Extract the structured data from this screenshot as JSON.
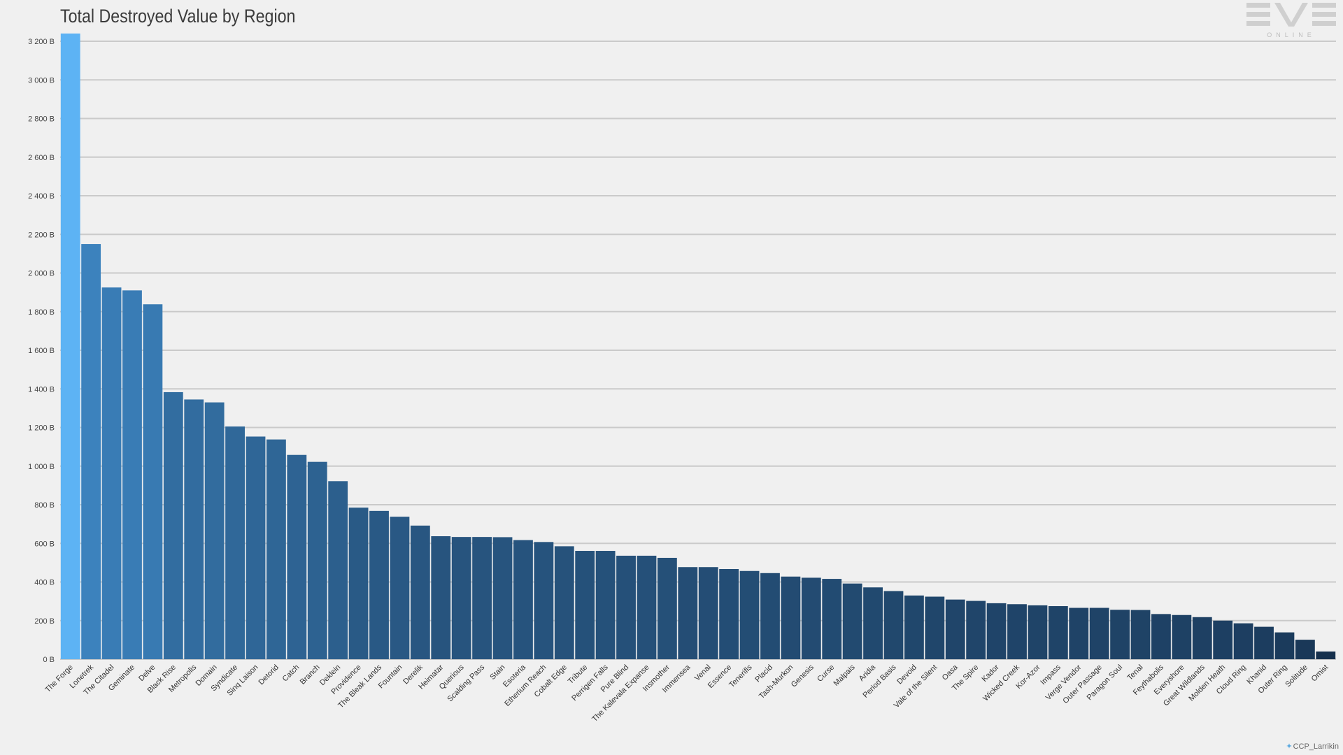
{
  "logo": {
    "text": "EVE",
    "subtext": "ONLINE"
  },
  "credit": {
    "icon": "twitter-bird-icon",
    "handle": "CCP_Larrikin"
  },
  "chart_data": {
    "type": "bar",
    "title": "Total Destroyed Value by Region",
    "xlabel": "",
    "ylabel": "",
    "ylim": [
      0,
      3200
    ],
    "yticks": [
      0,
      200,
      400,
      600,
      800,
      1000,
      1200,
      1400,
      1600,
      1800,
      2000,
      2200,
      2400,
      2600,
      2800,
      3000,
      3200
    ],
    "ytick_labels": [
      "0 B",
      "200 B",
      "400 B",
      "600 B",
      "800 B",
      "1 000 B",
      "1 200 B",
      "1 400 B",
      "1 600 B",
      "1 800 B",
      "2 000 B",
      "2 200 B",
      "2 400 B",
      "2 600 B",
      "2 800 B",
      "3 000 B",
      "3 200 B"
    ],
    "grid": true,
    "colors": {
      "highlight": "#5db3f4",
      "high": "#3c82bd",
      "low": "#16304d"
    },
    "categories": [
      "The Forge",
      "Lonetrek",
      "The Citadel",
      "Geminate",
      "Delve",
      "Black Rise",
      "Metropolis",
      "Domain",
      "Syndicate",
      "Sinq Laison",
      "Detorid",
      "Catch",
      "Branch",
      "Deklein",
      "Providence",
      "The Bleak Lands",
      "Fountain",
      "Derelik",
      "Heimatar",
      "Querious",
      "Scalding Pass",
      "Stain",
      "Esoteria",
      "Etherium Reach",
      "Cobalt Edge",
      "Tribute",
      "Perrigen Falls",
      "Pure Blind",
      "The Kalevala Expanse",
      "Insmother",
      "Immensea",
      "Venal",
      "Essence",
      "Tenerifis",
      "Placid",
      "Tash-Murkon",
      "Genesis",
      "Curse",
      "Malpais",
      "Aridia",
      "Period Basis",
      "Devoid",
      "Vale of the Silent",
      "Oasa",
      "The Spire",
      "Kador",
      "Wicked Creek",
      "Kor-Azor",
      "Impass",
      "Verge Vendor",
      "Outer Passage",
      "Paragon Soul",
      "Tenal",
      "Feythabolis",
      "Everyshore",
      "Great Wildlands",
      "Molden Heath",
      "Cloud Ring",
      "Khanid",
      "Outer Ring",
      "Solitude",
      "Omist"
    ],
    "values": [
      3240,
      2150,
      1925,
      1910,
      1838,
      1383,
      1345,
      1330,
      1205,
      1153,
      1138,
      1058,
      1022,
      922,
      785,
      768,
      738,
      692,
      637,
      633,
      633,
      632,
      617,
      607,
      585,
      561,
      561,
      536,
      536,
      525,
      477,
      477,
      467,
      457,
      446,
      428,
      422,
      416,
      392,
      372,
      353,
      330,
      324,
      309,
      302,
      290,
      285,
      279,
      275,
      266,
      266,
      256,
      255,
      234,
      229,
      218,
      200,
      186,
      168,
      139,
      101,
      40
    ]
  }
}
